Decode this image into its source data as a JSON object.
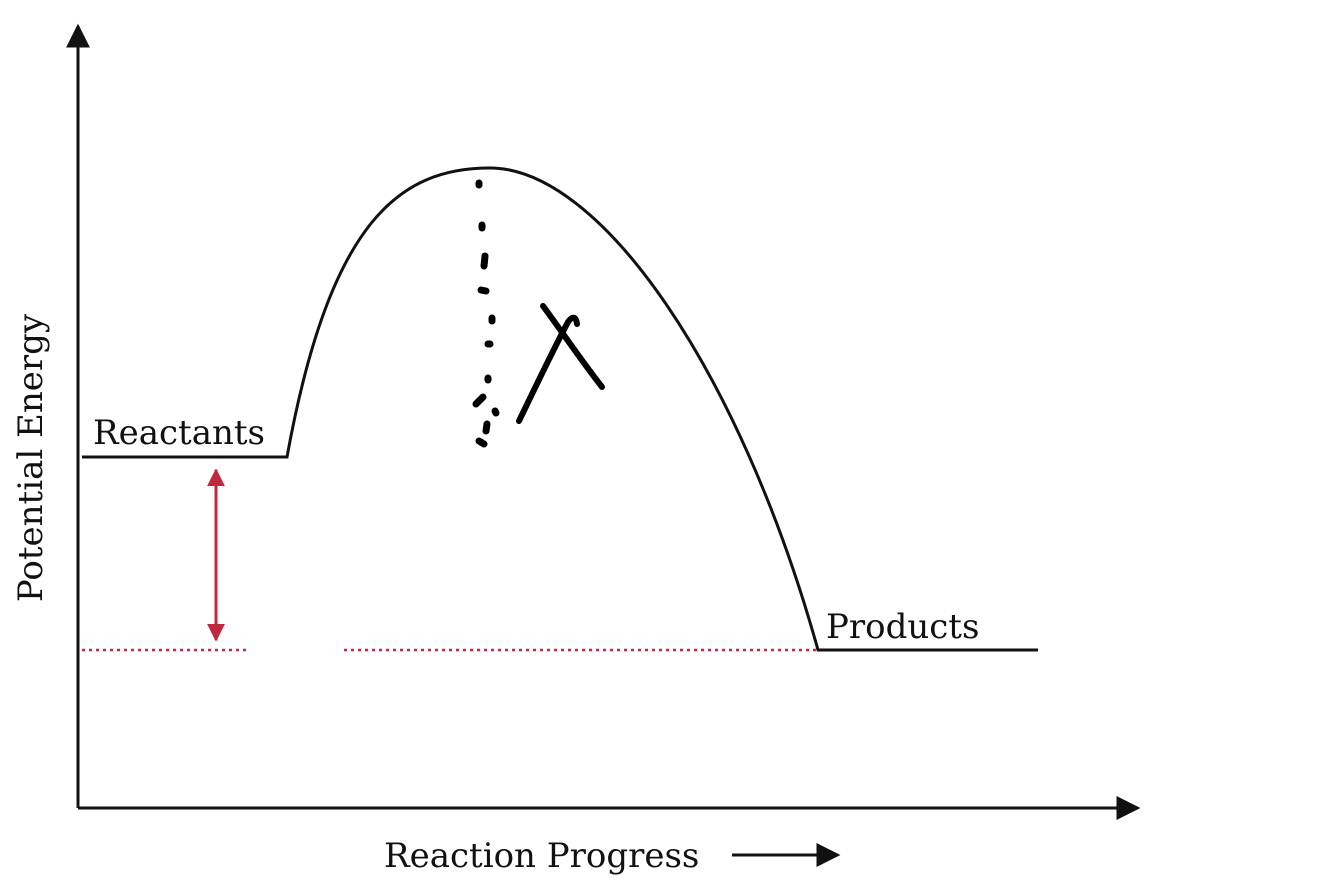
{
  "diagram": {
    "y_axis_label": "Potential Energy",
    "x_axis_label": "Reaction Progress",
    "reactants_label": "Reactants",
    "products_label": "Products"
  },
  "colors": {
    "curve": "#111111",
    "energy_change_arrow": "#c0283c",
    "reference_line": "#c0283c",
    "handwriting": "#000000"
  },
  "annotations": {
    "handwritten_mark": "lambda-like pen stroke beside a dotted vertical line"
  }
}
